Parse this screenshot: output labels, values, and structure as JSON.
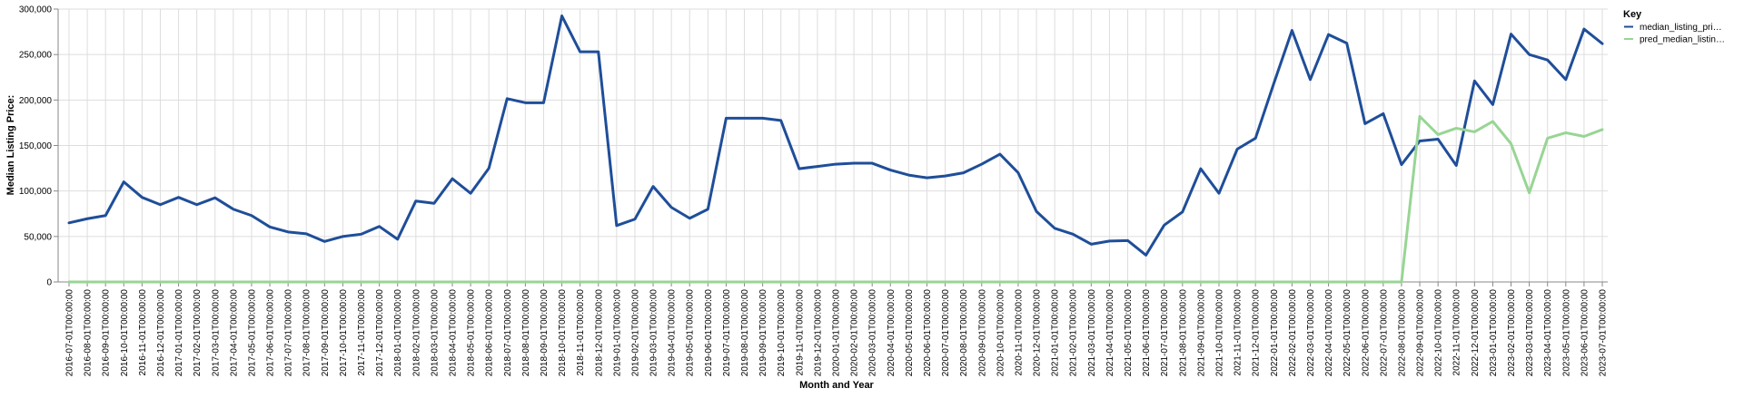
{
  "chart_data": {
    "type": "line",
    "title": "",
    "xlabel": "Month and Year",
    "ylabel": "Median Listing Price:",
    "ylim": [
      0,
      300000
    ],
    "yticks": [
      "0",
      "50,000",
      "100,000",
      "150,000",
      "200,000",
      "250,000",
      "300,000"
    ],
    "ytick_values": [
      0,
      50000,
      100000,
      150000,
      200000,
      250000,
      300000
    ],
    "grid": true,
    "legend": {
      "title": "Key",
      "placement": "top-right",
      "entries": [
        "median_listing_pri…",
        "pred_median_listin…"
      ]
    },
    "x": [
      "2016-07-01T00:00:00",
      "2016-08-01T00:00:00",
      "2016-09-01T00:00:00",
      "2016-10-01T00:00:00",
      "2016-11-01T00:00:00",
      "2016-12-01T00:00:00",
      "2017-01-01T00:00:00",
      "2017-02-01T00:00:00",
      "2017-03-01T00:00:00",
      "2017-04-01T00:00:00",
      "2017-05-01T00:00:00",
      "2017-06-01T00:00:00",
      "2017-07-01T00:00:00",
      "2017-08-01T00:00:00",
      "2017-09-01T00:00:00",
      "2017-10-01T00:00:00",
      "2017-11-01T00:00:00",
      "2017-12-01T00:00:00",
      "2018-01-01T00:00:00",
      "2018-02-01T00:00:00",
      "2018-03-01T00:00:00",
      "2018-04-01T00:00:00",
      "2018-05-01T00:00:00",
      "2018-06-01T00:00:00",
      "2018-07-01T00:00:00",
      "2018-08-01T00:00:00",
      "2018-09-01T00:00:00",
      "2018-10-01T00:00:00",
      "2018-11-01T00:00:00",
      "2018-12-01T00:00:00",
      "2019-01-01T00:00:00",
      "2019-02-01T00:00:00",
      "2019-03-01T00:00:00",
      "2019-04-01T00:00:00",
      "2019-05-01T00:00:00",
      "2019-06-01T00:00:00",
      "2019-07-01T00:00:00",
      "2019-08-01T00:00:00",
      "2019-09-01T00:00:00",
      "2019-10-01T00:00:00",
      "2019-11-01T00:00:00",
      "2019-12-01T00:00:00",
      "2020-01-01T00:00:00",
      "2020-02-01T00:00:00",
      "2020-03-01T00:00:00",
      "2020-04-01T00:00:00",
      "2020-05-01T00:00:00",
      "2020-06-01T00:00:00",
      "2020-07-01T00:00:00",
      "2020-08-01T00:00:00",
      "2020-09-01T00:00:00",
      "2020-10-01T00:00:00",
      "2020-11-01T00:00:00",
      "2020-12-01T00:00:00",
      "2021-01-01T00:00:00",
      "2021-02-01T00:00:00",
      "2021-03-01T00:00:00",
      "2021-04-01T00:00:00",
      "2021-05-01T00:00:00",
      "2021-06-01T00:00:00",
      "2021-07-01T00:00:00",
      "2021-08-01T00:00:00",
      "2021-09-01T00:00:00",
      "2021-10-01T00:00:00",
      "2021-11-01T00:00:00",
      "2021-12-01T00:00:00",
      "2022-01-01T00:00:00",
      "2022-02-01T00:00:00",
      "2022-03-01T00:00:00",
      "2022-04-01T00:00:00",
      "2022-05-01T00:00:00",
      "2022-06-01T00:00:00",
      "2022-07-01T00:00:00",
      "2022-08-01T00:00:00",
      "2022-09-01T00:00:00",
      "2022-10-01T00:00:00",
      "2022-11-01T00:00:00",
      "2022-12-01T00:00:00",
      "2023-01-01T00:00:00",
      "2023-02-01T00:00:00",
      "2023-03-01T00:00:00",
      "2023-04-01T00:00:00",
      "2023-05-01T00:00:00",
      "2023-06-01T00:00:00",
      "2023-07-01T00:00:00"
    ],
    "series": [
      {
        "name": "median_listing_pri…",
        "color": "#1f4e99",
        "values": [
          65000,
          69500,
          73000,
          110000,
          93000,
          85000,
          93000,
          85000,
          92500,
          80000,
          73000,
          60500,
          55000,
          53000,
          44500,
          50000,
          52500,
          61000,
          47000,
          89000,
          86500,
          113500,
          97500,
          125000,
          201500,
          197000,
          197000,
          292500,
          253000,
          253000,
          62000,
          69000,
          105000,
          82000,
          70000,
          80000,
          180000,
          180000,
          180000,
          177500,
          124500,
          127000,
          129500,
          130500,
          130500,
          123000,
          117500,
          114500,
          116500,
          120000,
          129500,
          140500,
          120000,
          77500,
          59000,
          52500,
          41500,
          45000,
          45500,
          29500,
          62500,
          77000,
          124500,
          97500,
          146000,
          158000,
          218000,
          276500,
          222500,
          272000,
          262500,
          174000,
          185000,
          129000,
          155000,
          157000,
          128000,
          221000,
          195000,
          272500,
          250000,
          244000,
          222500,
          278000,
          262000
        ]
      },
      {
        "name": "pred_median_listin…",
        "color": "#98d594",
        "values": [
          0,
          0,
          0,
          0,
          0,
          0,
          0,
          0,
          0,
          0,
          0,
          0,
          0,
          0,
          0,
          0,
          0,
          0,
          0,
          0,
          0,
          0,
          0,
          0,
          0,
          0,
          0,
          0,
          0,
          0,
          0,
          0,
          0,
          0,
          0,
          0,
          0,
          0,
          0,
          0,
          0,
          0,
          0,
          0,
          0,
          0,
          0,
          0,
          0,
          0,
          0,
          0,
          0,
          0,
          0,
          0,
          0,
          0,
          0,
          0,
          0,
          0,
          0,
          0,
          0,
          0,
          0,
          0,
          0,
          0,
          0,
          0,
          0,
          0,
          182000,
          162000,
          169000,
          165000,
          176500,
          152000,
          98000,
          158000,
          164000,
          160000,
          167500
        ]
      }
    ]
  }
}
